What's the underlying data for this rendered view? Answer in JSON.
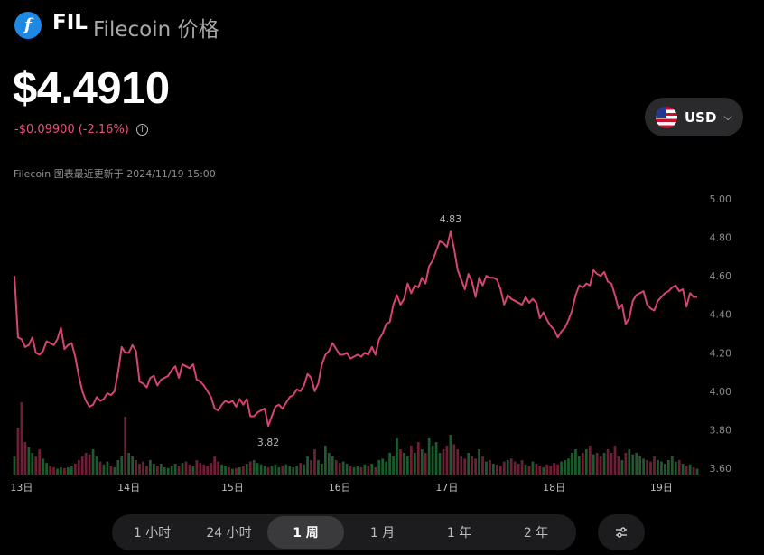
{
  "coin": {
    "logo_glyph": "f",
    "symbol": "FIL",
    "name": "Filecoin 价格",
    "logo_color": "#1e88e5"
  },
  "price": {
    "current": "$4.4910",
    "change": "-$0.09900",
    "change_pct": "(-2.16%)",
    "negative_color": "#f0507a"
  },
  "currency": {
    "label": "USD",
    "icon": "us-flag-icon"
  },
  "updated_text": "Filecoin 图表最近更新于 2024/11/19 15:00",
  "tabs": [
    {
      "label": "1 小时",
      "active": false
    },
    {
      "label": "24 小时",
      "active": false
    },
    {
      "label": "1 周",
      "active": true
    },
    {
      "label": "1 月",
      "active": false
    },
    {
      "label": "1 年",
      "active": false
    },
    {
      "label": "2 年",
      "active": false
    }
  ],
  "settings_icon": "sliders-icon",
  "chart_data": {
    "type": "line",
    "series": [
      {
        "values": [
          4.6,
          4.28,
          4.27,
          4.23,
          4.24,
          4.28,
          4.2,
          4.19,
          4.21,
          4.26,
          4.25,
          4.24,
          4.27,
          4.33,
          4.22,
          4.24,
          4.25,
          4.18,
          4.08,
          4.0,
          3.95,
          3.92,
          3.93,
          3.97,
          3.95,
          3.96,
          3.99,
          3.98,
          4.0,
          4.1,
          4.23,
          4.2,
          4.2,
          4.24,
          4.21,
          4.05,
          4.04,
          4.02,
          4.07,
          4.08,
          4.03,
          4.06,
          4.07,
          4.08,
          4.11,
          4.13,
          4.07,
          4.14,
          4.13,
          4.12,
          4.14,
          4.06,
          4.05,
          4.03,
          4.0,
          3.97,
          3.91,
          3.9,
          3.93,
          3.95,
          3.94,
          3.95,
          3.92,
          3.96,
          3.93,
          3.96,
          3.87,
          3.87,
          3.89,
          3.9,
          3.91,
          3.82,
          3.87,
          3.92,
          3.93,
          3.91,
          3.94,
          3.97,
          3.98,
          4.01,
          4.0,
          4.03,
          4.09,
          4.07,
          4.0,
          4.04,
          4.14,
          4.19,
          4.21,
          4.25,
          4.22,
          4.19,
          4.19,
          4.2,
          4.17,
          4.18,
          4.19,
          4.18,
          4.2,
          4.19,
          4.23,
          4.19,
          4.27,
          4.3,
          4.35,
          4.36,
          4.45,
          4.5,
          4.45,
          4.48,
          4.56,
          4.51,
          4.55,
          4.54,
          4.59,
          4.56,
          4.65,
          4.68,
          4.73,
          4.78,
          4.77,
          4.75,
          4.83,
          4.74,
          4.63,
          4.58,
          4.53,
          4.61,
          4.57,
          4.49,
          4.59,
          4.55,
          4.6,
          4.59,
          4.59,
          4.58,
          4.53,
          4.45,
          4.5,
          4.48,
          4.47,
          4.46,
          4.45,
          4.49,
          4.46,
          4.48,
          4.46,
          4.38,
          4.41,
          4.37,
          4.34,
          4.32,
          4.28,
          4.31,
          4.33,
          4.37,
          4.42,
          4.5,
          4.55,
          4.54,
          4.56,
          4.55,
          4.63,
          4.61,
          4.6,
          4.62,
          4.57,
          4.56,
          4.5,
          4.43,
          4.45,
          4.35,
          4.38,
          4.47,
          4.5,
          4.51,
          4.52,
          4.45,
          4.43,
          4.42,
          4.47,
          4.49,
          4.51,
          4.52,
          4.54,
          4.55,
          4.52,
          4.53,
          4.44,
          4.51,
          4.49,
          4.49
        ]
      }
    ],
    "volume": [
      0.25,
      0.65,
      1.0,
      0.45,
      0.38,
      0.3,
      0.25,
      0.35,
      0.22,
      0.16,
      0.12,
      0.1,
      0.08,
      0.1,
      0.09,
      0.1,
      0.12,
      0.15,
      0.2,
      0.25,
      0.3,
      0.28,
      0.35,
      0.25,
      0.18,
      0.14,
      0.18,
      0.12,
      0.1,
      0.2,
      0.25,
      0.8,
      0.3,
      0.25,
      0.2,
      0.15,
      0.18,
      0.12,
      0.2,
      0.15,
      0.12,
      0.15,
      0.1,
      0.09,
      0.12,
      0.15,
      0.12,
      0.16,
      0.18,
      0.14,
      0.12,
      0.2,
      0.16,
      0.14,
      0.12,
      0.16,
      0.25,
      0.18,
      0.14,
      0.12,
      0.1,
      0.08,
      0.09,
      0.1,
      0.12,
      0.15,
      0.18,
      0.2,
      0.16,
      0.14,
      0.12,
      0.1,
      0.12,
      0.14,
      0.1,
      0.12,
      0.14,
      0.12,
      0.1,
      0.12,
      0.16,
      0.14,
      0.25,
      0.2,
      0.35,
      0.2,
      0.15,
      0.4,
      0.3,
      0.25,
      0.2,
      0.16,
      0.18,
      0.15,
      0.12,
      0.1,
      0.12,
      0.1,
      0.14,
      0.12,
      0.15,
      0.1,
      0.2,
      0.22,
      0.18,
      0.3,
      0.25,
      0.5,
      0.35,
      0.3,
      0.25,
      0.4,
      0.3,
      0.45,
      0.35,
      0.3,
      0.5,
      0.4,
      0.45,
      0.3,
      0.35,
      0.4,
      0.55,
      0.42,
      0.35,
      0.25,
      0.22,
      0.3,
      0.25,
      0.22,
      0.35,
      0.25,
      0.18,
      0.2,
      0.15,
      0.14,
      0.12,
      0.18,
      0.2,
      0.22,
      0.18,
      0.15,
      0.2,
      0.14,
      0.12,
      0.18,
      0.15,
      0.12,
      0.1,
      0.14,
      0.12,
      0.16,
      0.14,
      0.18,
      0.2,
      0.22,
      0.3,
      0.35,
      0.25,
      0.3,
      0.35,
      0.4,
      0.28,
      0.3,
      0.25,
      0.3,
      0.35,
      0.3,
      0.4,
      0.25,
      0.2,
      0.3,
      0.35,
      0.28,
      0.3,
      0.25,
      0.22,
      0.2,
      0.18,
      0.25,
      0.2,
      0.18,
      0.15,
      0.2,
      0.25,
      0.18,
      0.2,
      0.15,
      0.12,
      0.14,
      0.1,
      0.08
    ],
    "x_ticks": [
      {
        "label": "13日",
        "index": 2
      },
      {
        "label": "14日",
        "index": 32
      },
      {
        "label": "15日",
        "index": 61
      },
      {
        "label": "16日",
        "index": 91
      },
      {
        "label": "17日",
        "index": 121
      },
      {
        "label": "18日",
        "index": 151
      },
      {
        "label": "19日",
        "index": 181
      }
    ],
    "y_ticks": [
      "5.00",
      "4.80",
      "4.60",
      "4.40",
      "4.20",
      "4.00",
      "3.80",
      "3.60"
    ],
    "ylim": [
      3.6,
      5.0
    ],
    "annotations": [
      {
        "label": "4.83",
        "index": 122,
        "position": "above"
      },
      {
        "label": "3.82",
        "index": 71,
        "position": "below"
      }
    ],
    "line_color": "#d6456e",
    "volume_up_color": "#1d5a2e",
    "volume_down_color": "#6e1f36",
    "grid": false
  }
}
